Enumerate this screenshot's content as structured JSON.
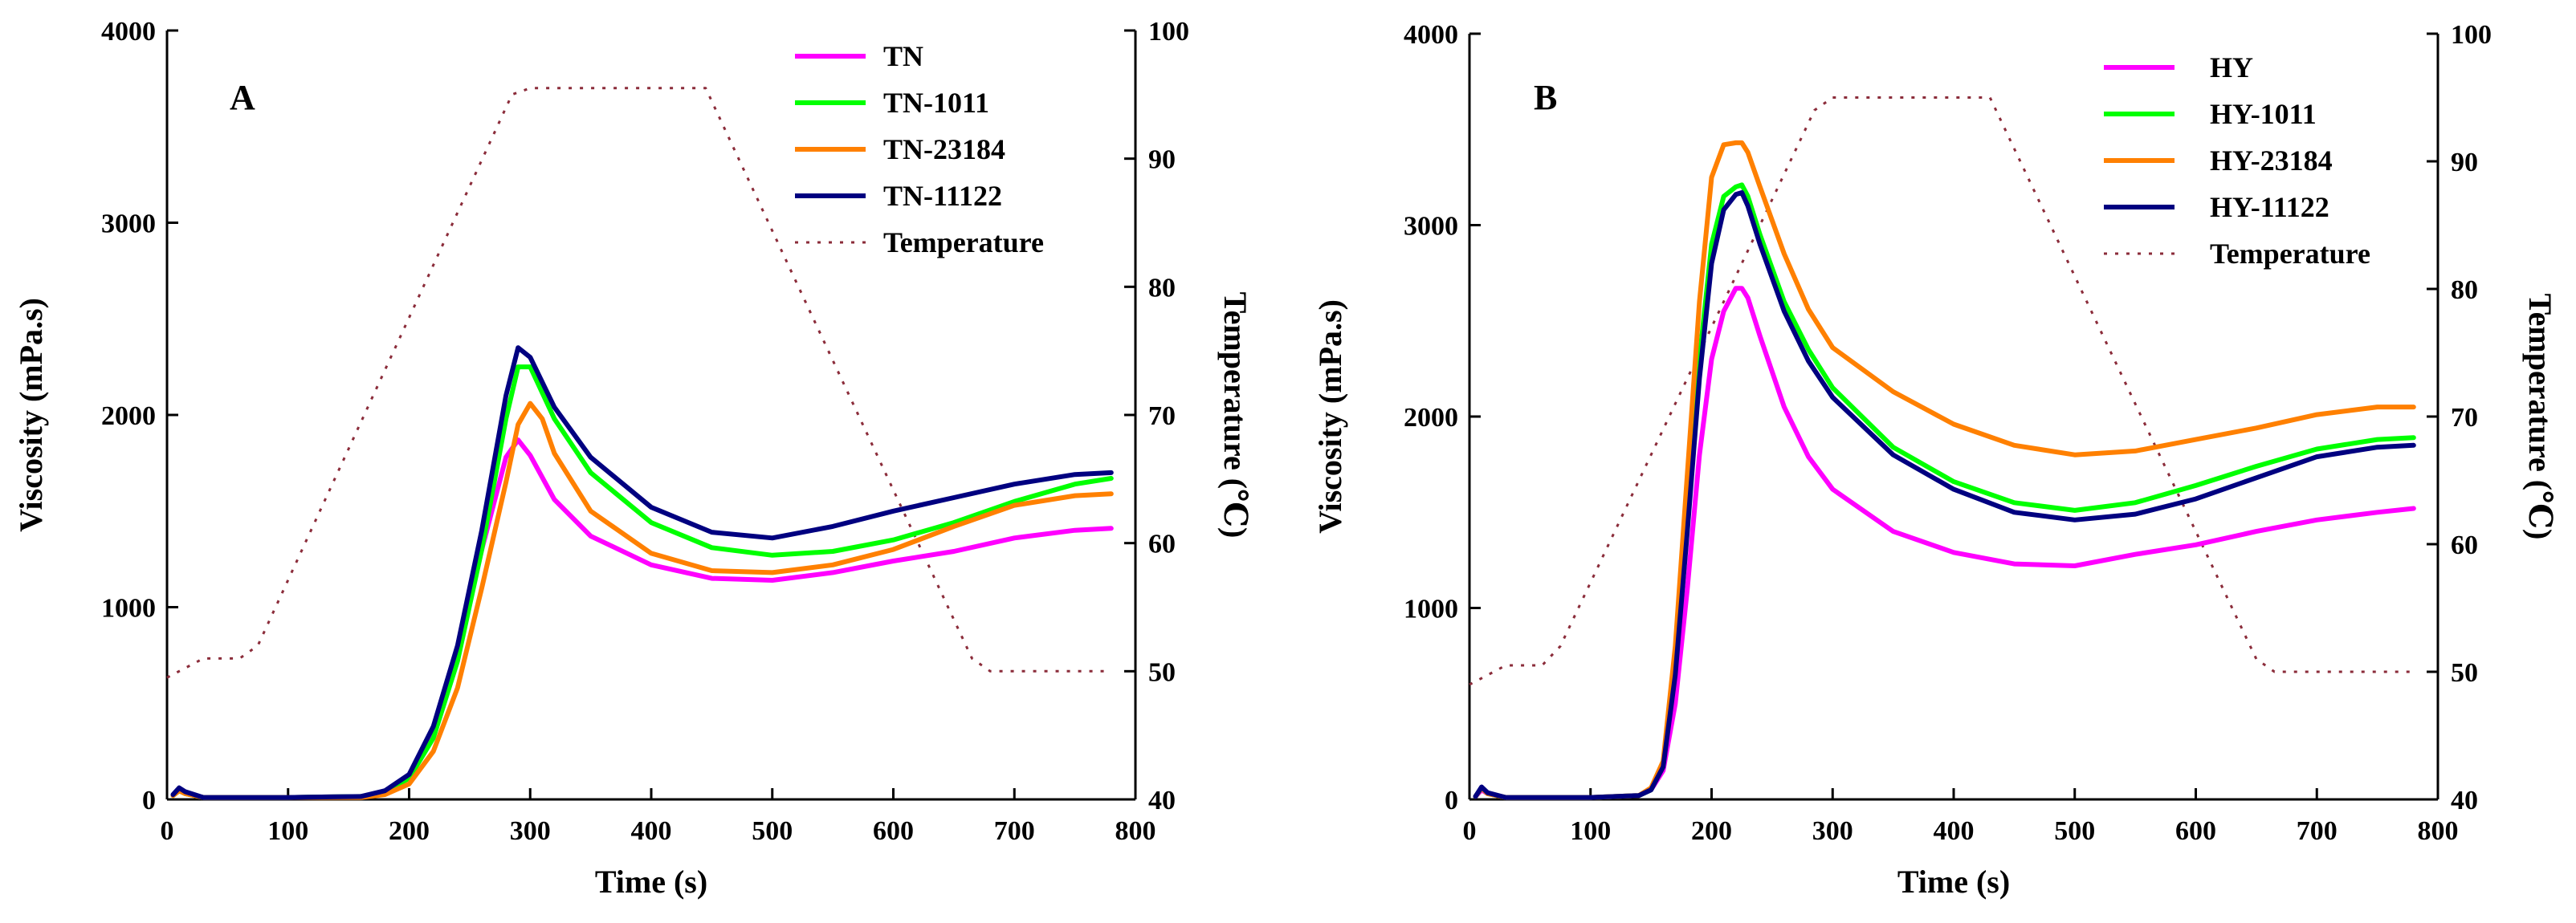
{
  "chart_data": [
    {
      "panel": "A",
      "type": "line",
      "xlabel": "Time (s)",
      "ylabel": "Viscosity (mPa.s)",
      "y2label": "Temperature (℃)",
      "xlim": [
        0,
        800
      ],
      "ylim": [
        0,
        4000
      ],
      "y2lim": [
        40,
        100
      ],
      "xticks": [
        "0",
        "100",
        "200",
        "300",
        "400",
        "500",
        "600",
        "700",
        "800"
      ],
      "yticks": [
        "0",
        "1000",
        "2000",
        "3000",
        "4000"
      ],
      "y2ticks": [
        "40",
        "50",
        "60",
        "70",
        "80",
        "90",
        "100"
      ],
      "legend_position": "top-right",
      "series": [
        {
          "name": "TN",
          "color": "#ff00ff",
          "x": [
            5,
            10,
            15,
            30,
            100,
            160,
            180,
            200,
            220,
            240,
            260,
            280,
            290,
            300,
            320,
            350,
            400,
            450,
            500,
            550,
            600,
            650,
            700,
            750,
            780
          ],
          "y": [
            20,
            45,
            30,
            10,
            10,
            15,
            40,
            120,
            350,
            750,
            1300,
            1780,
            1870,
            1790,
            1560,
            1370,
            1220,
            1150,
            1140,
            1180,
            1240,
            1290,
            1360,
            1400,
            1410
          ]
        },
        {
          "name": "TN-1011",
          "color": "#00ff00",
          "x": [
            5,
            10,
            15,
            30,
            100,
            160,
            180,
            200,
            220,
            240,
            260,
            280,
            290,
            300,
            320,
            350,
            400,
            450,
            500,
            550,
            600,
            650,
            700,
            750,
            780
          ],
          "y": [
            20,
            45,
            30,
            10,
            10,
            15,
            40,
            110,
            320,
            720,
            1300,
            1980,
            2250,
            2250,
            1980,
            1700,
            1440,
            1310,
            1270,
            1290,
            1350,
            1440,
            1550,
            1640,
            1670
          ]
        },
        {
          "name": "TN-23184",
          "color": "#ff8000",
          "x": [
            5,
            10,
            15,
            30,
            100,
            160,
            180,
            200,
            220,
            240,
            260,
            280,
            290,
            300,
            310,
            320,
            350,
            400,
            450,
            500,
            550,
            600,
            650,
            700,
            750,
            780
          ],
          "y": [
            20,
            45,
            30,
            10,
            10,
            10,
            25,
            80,
            250,
            580,
            1100,
            1650,
            1950,
            2060,
            1980,
            1800,
            1500,
            1280,
            1190,
            1180,
            1220,
            1300,
            1420,
            1530,
            1580,
            1590
          ]
        },
        {
          "name": "TN-11122",
          "color": "#000080",
          "x": [
            5,
            10,
            15,
            30,
            100,
            160,
            180,
            200,
            220,
            240,
            260,
            280,
            290,
            300,
            320,
            350,
            400,
            450,
            500,
            550,
            600,
            650,
            700,
            750,
            780
          ],
          "y": [
            25,
            60,
            40,
            10,
            10,
            15,
            45,
            130,
            380,
            800,
            1400,
            2100,
            2350,
            2300,
            2040,
            1780,
            1520,
            1390,
            1360,
            1420,
            1500,
            1570,
            1640,
            1690,
            1700
          ]
        },
        {
          "name": "Temperature",
          "color": "#8b2c3a",
          "dashed": true,
          "axis": "right",
          "x": [
            0,
            10,
            20,
            30,
            60,
            75,
            285,
            300,
            445,
            665,
            680,
            780
          ],
          "y": [
            49.5,
            50,
            50.5,
            51,
            51,
            52,
            95,
            95.5,
            95.5,
            51,
            50,
            50
          ]
        }
      ]
    },
    {
      "panel": "B",
      "type": "line",
      "xlabel": "Time (s)",
      "ylabel": "Viscosity (mPa.s)",
      "y2label": "Temperature (℃)",
      "xlim": [
        0,
        800
      ],
      "ylim": [
        0,
        4000
      ],
      "y2lim": [
        40,
        100
      ],
      "xticks": [
        "0",
        "100",
        "200",
        "300",
        "400",
        "500",
        "600",
        "700",
        "800"
      ],
      "yticks": [
        "0",
        "1000",
        "2000",
        "3000",
        "4000"
      ],
      "y2ticks": [
        "40",
        "50",
        "60",
        "70",
        "80",
        "90",
        "100"
      ],
      "legend_position": "top-right",
      "series": [
        {
          "name": "HY",
          "color": "#ff00ff",
          "x": [
            5,
            10,
            15,
            30,
            100,
            140,
            150,
            160,
            170,
            180,
            190,
            200,
            210,
            220,
            225,
            230,
            240,
            260,
            280,
            300,
            350,
            400,
            450,
            500,
            550,
            600,
            650,
            700,
            750,
            780
          ],
          "y": [
            15,
            50,
            30,
            10,
            10,
            20,
            50,
            150,
            500,
            1100,
            1800,
            2300,
            2550,
            2670,
            2670,
            2620,
            2420,
            2050,
            1790,
            1620,
            1400,
            1290,
            1230,
            1220,
            1280,
            1330,
            1400,
            1460,
            1500,
            1520
          ]
        },
        {
          "name": "HY-1011",
          "color": "#00ff00",
          "x": [
            5,
            10,
            15,
            30,
            100,
            140,
            150,
            160,
            170,
            180,
            190,
            200,
            210,
            220,
            225,
            230,
            240,
            260,
            280,
            300,
            350,
            400,
            450,
            500,
            550,
            600,
            650,
            700,
            750,
            780
          ],
          "y": [
            15,
            60,
            30,
            10,
            10,
            20,
            50,
            180,
            700,
            1500,
            2300,
            2900,
            3150,
            3200,
            3210,
            3150,
            2950,
            2600,
            2350,
            2150,
            1840,
            1660,
            1550,
            1510,
            1550,
            1640,
            1740,
            1830,
            1880,
            1890
          ]
        },
        {
          "name": "HY-23184",
          "color": "#ff8000",
          "x": [
            5,
            10,
            15,
            30,
            100,
            140,
            150,
            160,
            170,
            180,
            190,
            200,
            210,
            220,
            225,
            230,
            240,
            260,
            280,
            300,
            350,
            400,
            450,
            500,
            550,
            600,
            650,
            700,
            750,
            780
          ],
          "y": [
            15,
            60,
            30,
            10,
            10,
            20,
            60,
            200,
            800,
            1700,
            2600,
            3250,
            3420,
            3430,
            3430,
            3380,
            3200,
            2850,
            2560,
            2360,
            2130,
            1960,
            1850,
            1800,
            1820,
            1880,
            1940,
            2010,
            2050,
            2050
          ]
        },
        {
          "name": "HY-11122",
          "color": "#000080",
          "x": [
            5,
            10,
            15,
            30,
            100,
            140,
            150,
            160,
            170,
            180,
            190,
            200,
            210,
            220,
            225,
            230,
            240,
            260,
            280,
            300,
            350,
            400,
            450,
            500,
            550,
            600,
            650,
            700,
            750,
            780
          ],
          "y": [
            15,
            65,
            35,
            10,
            10,
            20,
            50,
            170,
            650,
            1400,
            2200,
            2800,
            3080,
            3160,
            3170,
            3100,
            2900,
            2550,
            2290,
            2100,
            1800,
            1620,
            1500,
            1460,
            1490,
            1570,
            1680,
            1790,
            1840,
            1850
          ]
        },
        {
          "name": "Temperature",
          "color": "#8b2c3a",
          "dashed": true,
          "axis": "right",
          "x": [
            0,
            10,
            20,
            30,
            60,
            75,
            285,
            300,
            430,
            650,
            665,
            780
          ],
          "y": [
            49,
            49.5,
            50,
            50.5,
            50.5,
            52,
            94,
            95,
            95,
            51,
            50,
            50
          ]
        }
      ]
    }
  ]
}
